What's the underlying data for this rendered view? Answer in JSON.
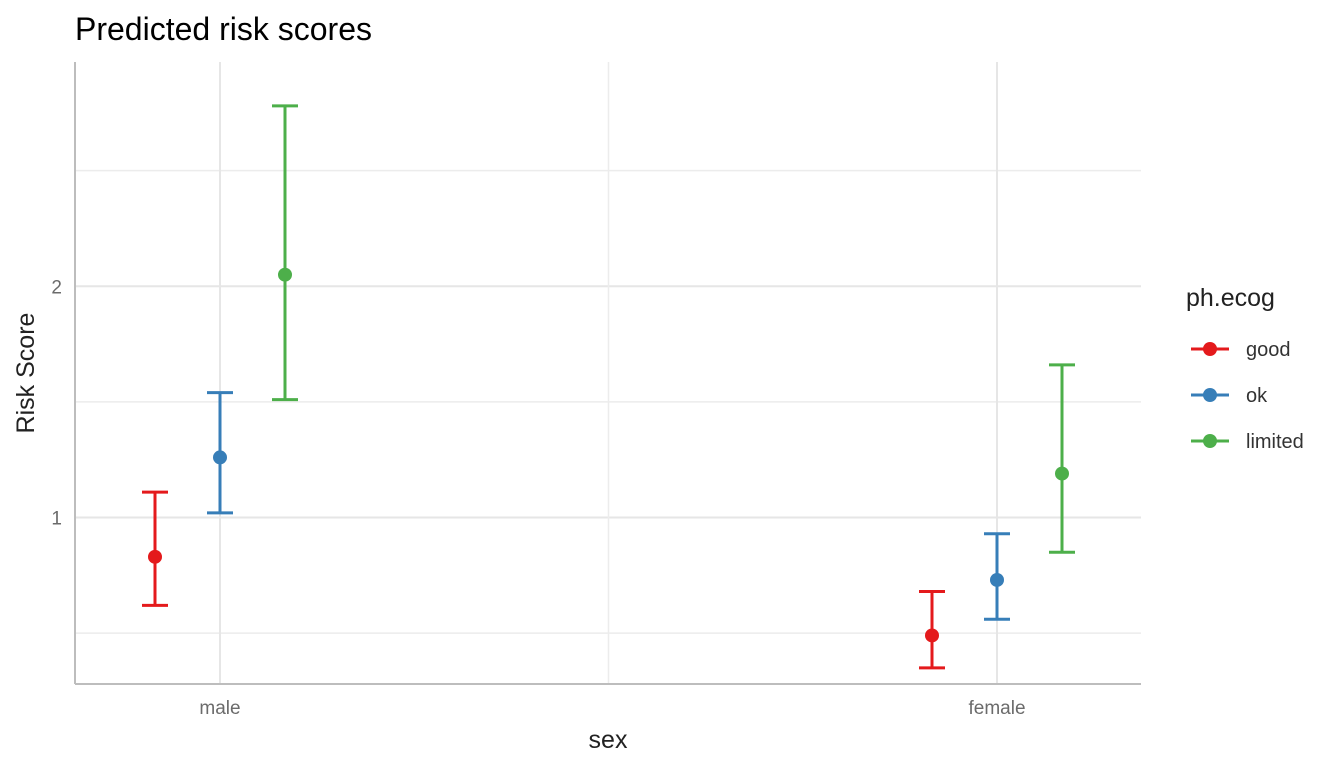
{
  "chart_data": {
    "type": "scatter",
    "title": "Predicted risk scores",
    "xlabel": "sex",
    "ylabel": "Risk Score",
    "categories": [
      "male",
      "female"
    ],
    "ylim": [
      0.28,
      2.97
    ],
    "yticks": [
      1,
      2
    ],
    "minor_yticks": [
      0.5,
      1.5,
      2.5
    ],
    "grid": true,
    "legend": {
      "title": "ph.ecog",
      "position": "right"
    },
    "series": [
      {
        "name": "good",
        "color": "#E41A1C",
        "values": [
          0.83,
          0.49
        ],
        "lower": [
          0.62,
          0.35
        ],
        "upper": [
          1.11,
          0.68
        ]
      },
      {
        "name": "ok",
        "color": "#377EB8",
        "values": [
          1.26,
          0.73
        ],
        "lower": [
          1.02,
          0.56
        ],
        "upper": [
          1.54,
          0.93
        ]
      },
      {
        "name": "limited",
        "color": "#4DAF4A",
        "values": [
          2.05,
          1.19
        ],
        "lower": [
          1.51,
          0.85
        ],
        "upper": [
          2.78,
          1.66
        ]
      }
    ]
  }
}
